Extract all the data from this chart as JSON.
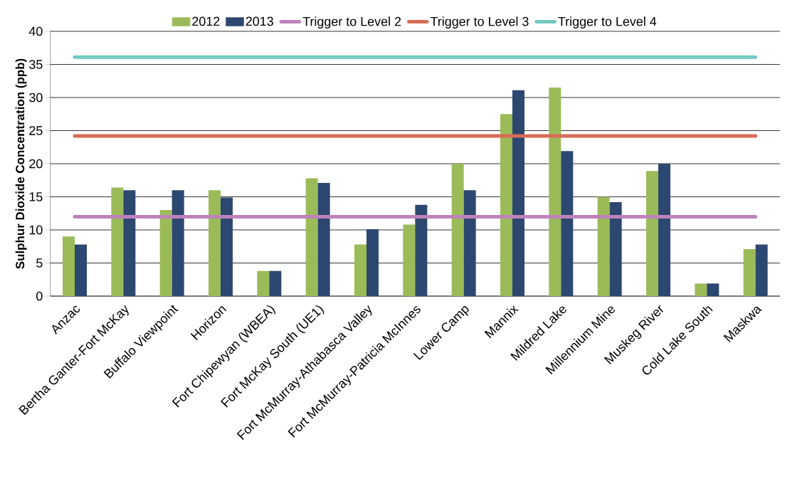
{
  "chart_data": {
    "type": "bar",
    "ylabel": "Sulphur Dioxide Concentration (ppb)",
    "categories": [
      "Anzac",
      "Bertha Ganter-Fort McKay",
      "Buffalo Viewpoint",
      "Horizon",
      "Fort Chipewyan (WBEA)",
      "Fort McKay South (UE1)",
      "Fort McMurray-Athabasca Valley",
      "Fort McMurray-Patricia McInnes",
      "Lower Camp",
      "Mannix",
      "Mildred Lake",
      "Millennium Mine",
      "Muskeg River",
      "Cold Lake South",
      "Maskwa"
    ],
    "series": [
      {
        "name": "2012",
        "color": "#9bbb59",
        "values": [
          9,
          16.4,
          13,
          16,
          3.8,
          17.8,
          7.8,
          10.8,
          20,
          27.5,
          31.5,
          15,
          18.9,
          1.9,
          7.1
        ]
      },
      {
        "name": "2013",
        "color": "#2c4770",
        "values": [
          7.8,
          16,
          16,
          14.9,
          3.8,
          17.1,
          10.1,
          13.8,
          16,
          31.1,
          21.9,
          14.2,
          20,
          1.9,
          7.8
        ]
      },
      {
        "name": "Trigger to Level 2",
        "type": "line",
        "color": "#bf82bb",
        "values": [
          12,
          12,
          12,
          12,
          12,
          12,
          12,
          12,
          12,
          12,
          12,
          12,
          12,
          12,
          12
        ]
      },
      {
        "name": "Trigger to Level 3",
        "type": "line",
        "color": "#d86b56",
        "values": [
          24.2,
          24.2,
          24.2,
          24.2,
          24.2,
          24.2,
          24.2,
          24.2,
          24.2,
          24.2,
          24.2,
          24.2,
          24.2,
          24.2,
          24.2
        ]
      },
      {
        "name": "Trigger to Level 4",
        "type": "line",
        "color": "#72c9c0",
        "values": [
          36.1,
          36.1,
          36.1,
          36.1,
          36.1,
          36.1,
          36.1,
          36.1,
          36.1,
          36.1,
          36.1,
          36.1,
          36.1,
          36.1,
          36.1
        ]
      }
    ],
    "ylim": [
      0,
      40
    ],
    "yticks": [
      0,
      5,
      10,
      15,
      20,
      25,
      30,
      35,
      40
    ],
    "grid": "y",
    "legend": "top",
    "marker": "none",
    "line_style": "solid"
  }
}
